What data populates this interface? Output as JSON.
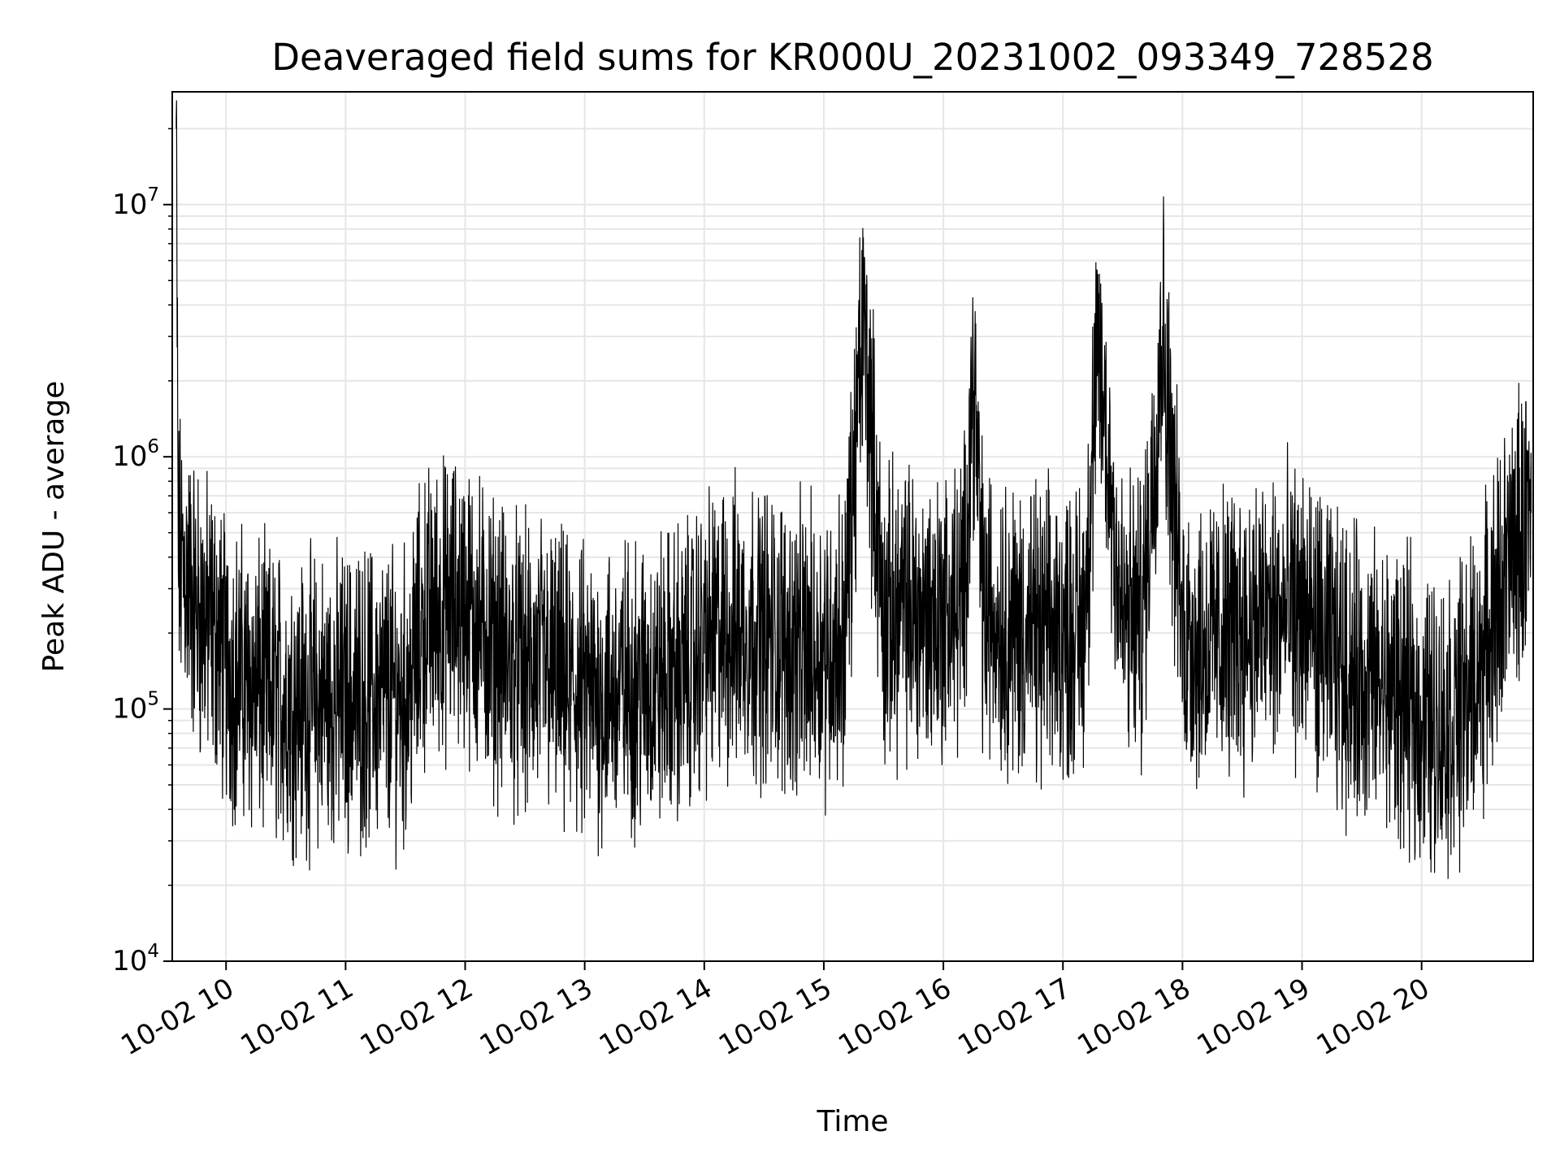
{
  "chart_data": {
    "type": "line",
    "title": "Deaveraged field sums for KR000U_20231002_093349_728528",
    "xlabel": "Time",
    "ylabel": "Peak ADU - average",
    "yscale": "log",
    "ylim": [
      10000,
      28000000
    ],
    "xlim": [
      "2023-10-02 09:33",
      "2023-10-02 20:56"
    ],
    "x_ticks": [
      "10-02 10",
      "10-02 11",
      "10-02 12",
      "10-02 13",
      "10-02 14",
      "10-02 15",
      "10-02 16",
      "10-02 17",
      "10-02 18",
      "10-02 19",
      "10-02 20"
    ],
    "y_ticks": [
      {
        "value": 10000,
        "base": "10",
        "exp": "4"
      },
      {
        "value": 100000,
        "base": "10",
        "exp": "5"
      },
      {
        "value": 1000000,
        "base": "10",
        "exp": "6"
      },
      {
        "value": 10000000,
        "base": "10",
        "exp": "7"
      }
    ],
    "grid": true,
    "line_color": "#000000",
    "series": [
      {
        "x": [
          "2023-10-02 09:35",
          "2023-10-02 09:36",
          "2023-10-02 09:40",
          "2023-10-02 09:45",
          "2023-10-02 09:50",
          "2023-10-02 09:55",
          "2023-10-02 10:00",
          "2023-10-02 10:10",
          "2023-10-02 10:20",
          "2023-10-02 10:30",
          "2023-10-02 10:40",
          "2023-10-02 10:50",
          "2023-10-02 11:00",
          "2023-10-02 11:10",
          "2023-10-02 11:20",
          "2023-10-02 11:30",
          "2023-10-02 11:40",
          "2023-10-02 11:50",
          "2023-10-02 12:00",
          "2023-10-02 12:05",
          "2023-10-02 12:10",
          "2023-10-02 12:20",
          "2023-10-02 12:30",
          "2023-10-02 12:40",
          "2023-10-02 12:50",
          "2023-10-02 13:00",
          "2023-10-02 13:10",
          "2023-10-02 13:20",
          "2023-10-02 13:30",
          "2023-10-02 13:40",
          "2023-10-02 13:50",
          "2023-10-02 14:00",
          "2023-10-02 14:10",
          "2023-10-02 14:20",
          "2023-10-02 14:30",
          "2023-10-02 14:40",
          "2023-10-02 14:50",
          "2023-10-02 15:00",
          "2023-10-02 15:10",
          "2023-10-02 15:20",
          "2023-10-02 15:30",
          "2023-10-02 15:40",
          "2023-10-02 15:50",
          "2023-10-02 16:00",
          "2023-10-02 16:10",
          "2023-10-02 16:15",
          "2023-10-02 16:20",
          "2023-10-02 16:30",
          "2023-10-02 16:40",
          "2023-10-02 16:50",
          "2023-10-02 17:00",
          "2023-10-02 17:10",
          "2023-10-02 17:18",
          "2023-10-02 17:30",
          "2023-10-02 17:40",
          "2023-10-02 17:50",
          "2023-10-02 18:00",
          "2023-10-02 18:10",
          "2023-10-02 18:20",
          "2023-10-02 18:30",
          "2023-10-02 18:40",
          "2023-10-02 18:50",
          "2023-10-02 19:00",
          "2023-10-02 19:10",
          "2023-10-02 19:20",
          "2023-10-02 19:30",
          "2023-10-02 19:40",
          "2023-10-02 19:50",
          "2023-10-02 20:00",
          "2023-10-02 20:10",
          "2023-10-02 20:20",
          "2023-10-02 20:30",
          "2023-10-02 20:40",
          "2023-10-02 20:50",
          "2023-10-02 20:55"
        ],
        "y": [
          20000000,
          400000,
          350000,
          250000,
          220000,
          200000,
          150000,
          130000,
          115000,
          110000,
          105000,
          108000,
          110000,
          112000,
          115000,
          110000,
          230000,
          250000,
          260000,
          220000,
          200000,
          160000,
          140000,
          150000,
          120000,
          110000,
          115000,
          120000,
          125000,
          130000,
          140000,
          180000,
          200000,
          210000,
          200000,
          180000,
          170000,
          175000,
          190000,
          3500000,
          220000,
          250000,
          230000,
          240000,
          260000,
          2200000,
          250000,
          220000,
          200000,
          190000,
          200000,
          210000,
          2500000,
          220000,
          230000,
          3300000,
          200000,
          180000,
          190000,
          210000,
          220000,
          230000,
          240000,
          180000,
          150000,
          130000,
          120000,
          110000,
          90000,
          85000,
          100000,
          150000,
          300000,
          500000,
          600000
        ]
      }
    ]
  }
}
